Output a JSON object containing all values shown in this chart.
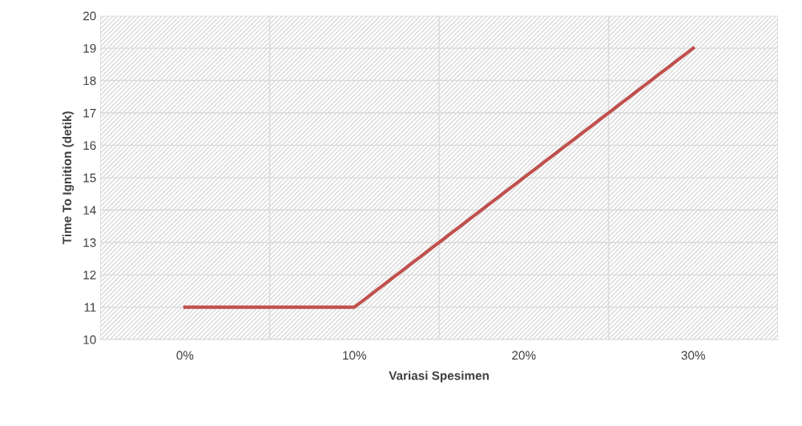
{
  "chart_data": {
    "type": "line",
    "xlabel": "Variasi Spesimen",
    "ylabel": "Time To Ignition (detik)",
    "categories": [
      "0%",
      "10%",
      "20%",
      "30%"
    ],
    "series": [
      {
        "color": "#c0504d",
        "values": [
          11,
          11,
          15,
          19
        ]
      }
    ],
    "ylim": [
      10,
      20
    ],
    "yticks": [
      10,
      11,
      12,
      13,
      14,
      15,
      16,
      17,
      18,
      19,
      20
    ],
    "grid": true,
    "marker": "none",
    "line_style": "solid"
  }
}
